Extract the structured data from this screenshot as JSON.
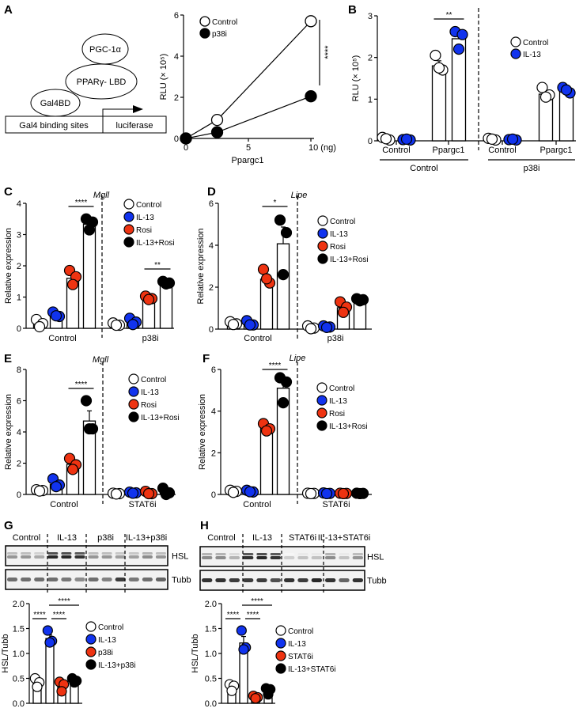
{
  "panels": [
    "A",
    "B",
    "C",
    "D",
    "E",
    "F",
    "G",
    "H"
  ],
  "diagram": {
    "boxes": [
      "Gal4 binding sites",
      "luciferase"
    ],
    "proteins": [
      "Gal4BD",
      "PPARγ- LBD",
      "PGC-1α"
    ]
  },
  "chart_data": [
    {
      "panel": "A",
      "type": "line",
      "xlabel": "Ppargc1",
      "ylabel": "RLU (× 10⁵)",
      "xlim": [
        0,
        10
      ],
      "ylim": [
        0,
        6
      ],
      "xtick_labels": [
        "0",
        "5",
        "10 (ng)"
      ],
      "xticks": [
        0,
        5,
        10
      ],
      "ytick_labels": [
        "0",
        "2",
        "4",
        "6"
      ],
      "yticks": [
        0,
        2,
        4,
        6
      ],
      "series": [
        {
          "name": "Control",
          "color": "#ffffff",
          "x": [
            0,
            2.5,
            10
          ],
          "y": [
            0,
            0.9,
            5.7
          ]
        },
        {
          "name": "p38i",
          "color": "#000000",
          "x": [
            0,
            2.5,
            10
          ],
          "y": [
            0,
            0.3,
            2.05
          ]
        }
      ],
      "significance": [
        {
          "label": "****"
        }
      ],
      "legend": "top-left"
    },
    {
      "panel": "B",
      "type": "bar",
      "ylabel": "RLU (× 10⁵)",
      "ylim": [
        0,
        3
      ],
      "ytick_labels": [
        "0",
        "1",
        "2",
        "3"
      ],
      "yticks": [
        0,
        1,
        2,
        3
      ],
      "subgroups": [
        "Control",
        "Ppargc1",
        "Control",
        "Ppargc1"
      ],
      "groups": [
        "Control",
        "p38i"
      ],
      "series": [
        {
          "name": "Control",
          "color": "#ffffff"
        },
        {
          "name": "IL-13",
          "color": "#1133ee"
        }
      ],
      "bars": [
        {
          "series": 0,
          "mean": 0.05,
          "sem": 0.02,
          "points": [
            0.08,
            0.02,
            0.05
          ]
        },
        {
          "series": 1,
          "mean": 0.03,
          "sem": 0.01,
          "points": [
            0.03,
            0.02,
            0.04
          ]
        },
        {
          "series": 0,
          "mean": 1.8,
          "sem": 0.12,
          "points": [
            2.05,
            1.7,
            1.75
          ]
        },
        {
          "series": 1,
          "mean": 2.45,
          "sem": 0.1,
          "points": [
            2.62,
            2.55,
            2.2
          ]
        },
        {
          "series": 0,
          "mean": 0.04,
          "sem": 0.02,
          "points": [
            0.06,
            0.02,
            0.04
          ]
        },
        {
          "series": 1,
          "mean": 0.03,
          "sem": 0.01,
          "points": [
            0.03,
            0.02,
            0.04
          ]
        },
        {
          "series": 0,
          "mean": 1.12,
          "sem": 0.08,
          "points": [
            1.28,
            1.1,
            1.05
          ]
        },
        {
          "series": 1,
          "mean": 1.22,
          "sem": 0.05,
          "points": [
            1.28,
            1.15,
            1.22
          ]
        }
      ],
      "significance": [
        {
          "from": 2,
          "to": 3,
          "label": "**"
        }
      ],
      "legend": "right"
    },
    {
      "panel": "C",
      "type": "bar",
      "ylabel": "Relative expression",
      "gene": "Mgll",
      "ylim": [
        0,
        4
      ],
      "ytick_labels": [
        "0",
        "1",
        "2",
        "3",
        "4"
      ],
      "yticks": [
        0,
        1,
        2,
        3,
        4
      ],
      "groups": [
        "Control",
        "p38i"
      ],
      "series": [
        {
          "name": "Control",
          "color": "#ffffff"
        },
        {
          "name": "IL-13",
          "color": "#1133ee"
        },
        {
          "name": "Rosi",
          "color": "#ee3311"
        },
        {
          "name": "IL-13+Rosi",
          "color": "#000000"
        }
      ],
      "bars": [
        {
          "series": 0,
          "mean": 0.13,
          "sem": 0.07,
          "points": [
            0.28,
            0.15,
            0.05
          ]
        },
        {
          "series": 1,
          "mean": 0.43,
          "sem": 0.04,
          "points": [
            0.52,
            0.38,
            0.4
          ]
        },
        {
          "series": 2,
          "mean": 1.6,
          "sem": 0.13,
          "points": [
            1.85,
            1.65,
            1.4
          ]
        },
        {
          "series": 3,
          "mean": 3.33,
          "sem": 0.1,
          "points": [
            3.5,
            3.4,
            3.15
          ]
        },
        {
          "series": 0,
          "mean": 0.12,
          "sem": 0.03,
          "points": [
            0.17,
            0.1,
            0.1
          ]
        },
        {
          "series": 1,
          "mean": 0.2,
          "sem": 0.06,
          "points": [
            0.32,
            0.2,
            0.12
          ]
        },
        {
          "series": 2,
          "mean": 0.97,
          "sem": 0.03,
          "points": [
            1.03,
            0.95,
            0.92
          ]
        },
        {
          "series": 3,
          "mean": 1.45,
          "sem": 0.02,
          "points": [
            1.5,
            1.45,
            1.42
          ]
        }
      ],
      "significance": [
        {
          "from": 2,
          "to": 3,
          "label": "****"
        },
        {
          "from": 6,
          "to": 7,
          "label": "**"
        }
      ],
      "legend": "top-right"
    },
    {
      "panel": "D",
      "type": "bar",
      "ylabel": "Relative expression",
      "gene": "Lipe",
      "ylim": [
        0,
        6
      ],
      "ytick_labels": [
        "0",
        "2",
        "4",
        "6"
      ],
      "yticks": [
        0,
        2,
        4,
        6
      ],
      "groups": [
        "Control",
        "p38i"
      ],
      "series": [
        {
          "name": "Control",
          "color": "#ffffff"
        },
        {
          "name": "IL-13",
          "color": "#1133ee"
        },
        {
          "name": "Rosi",
          "color": "#ee3311"
        },
        {
          "name": "IL-13+Rosi",
          "color": "#000000"
        }
      ],
      "bars": [
        {
          "series": 0,
          "mean": 0.27,
          "sem": 0.04,
          "points": [
            0.35,
            0.25,
            0.22
          ]
        },
        {
          "series": 1,
          "mean": 0.25,
          "sem": 0.06,
          "points": [
            0.4,
            0.2,
            0.2
          ]
        },
        {
          "series": 2,
          "mean": 2.38,
          "sem": 0.2,
          "points": [
            2.85,
            2.2,
            2.4
          ]
        },
        {
          "series": 3,
          "mean": 4.07,
          "sem": 0.8,
          "points": [
            5.2,
            4.6,
            2.6
          ]
        },
        {
          "series": 0,
          "mean": 0.07,
          "sem": 0.04,
          "points": [
            0.15,
            0.05,
            0.02
          ]
        },
        {
          "series": 1,
          "mean": 0.1,
          "sem": 0.02,
          "points": [
            0.15,
            0.1,
            0.08
          ]
        },
        {
          "series": 2,
          "mean": 1.02,
          "sem": 0.15,
          "points": [
            1.3,
            1.05,
            0.8
          ]
        },
        {
          "series": 3,
          "mean": 1.4,
          "sem": 0.03,
          "points": [
            1.45,
            1.4,
            1.35
          ]
        }
      ],
      "significance": [
        {
          "from": 2,
          "to": 3,
          "label": "*"
        }
      ],
      "legend": "right"
    },
    {
      "panel": "E",
      "type": "bar",
      "ylabel": "Relative expression",
      "gene": "Mgll",
      "ylim": [
        0,
        8
      ],
      "ytick_labels": [
        "0",
        "2",
        "4",
        "6",
        "8"
      ],
      "yticks": [
        0,
        2,
        4,
        6,
        8
      ],
      "groups": [
        "Control",
        "STAT6i"
      ],
      "series": [
        {
          "name": "Control",
          "color": "#ffffff"
        },
        {
          "name": "IL-13",
          "color": "#1133ee"
        },
        {
          "name": "Rosi",
          "color": "#ee3311"
        },
        {
          "name": "IL-13+Rosi",
          "color": "#000000"
        }
      ],
      "bars": [
        {
          "series": 0,
          "mean": 0.25,
          "sem": 0.03,
          "points": [
            0.3,
            0.25,
            0.22
          ]
        },
        {
          "series": 1,
          "mean": 0.63,
          "sem": 0.15,
          "points": [
            1.0,
            0.6,
            0.5
          ]
        },
        {
          "series": 2,
          "mean": 1.93,
          "sem": 0.2,
          "points": [
            2.3,
            1.9,
            1.6
          ]
        },
        {
          "series": 3,
          "mean": 4.7,
          "sem": 0.65,
          "points": [
            6.0,
            4.2,
            4.2
          ]
        },
        {
          "series": 0,
          "mean": 0.05,
          "sem": 0.02,
          "points": [
            0.08,
            0.05,
            0.03
          ]
        },
        {
          "series": 1,
          "mean": 0.12,
          "sem": 0.03,
          "points": [
            0.15,
            0.1,
            0.08
          ]
        },
        {
          "series": 2,
          "mean": 0.1,
          "sem": 0.05,
          "points": [
            0.2,
            0.05,
            0.05
          ]
        },
        {
          "series": 3,
          "mean": 0.12,
          "sem": 0.1,
          "points": [
            0.4,
            0.1,
            0.0
          ]
        }
      ],
      "significance": [
        {
          "from": 2,
          "to": 3,
          "label": "****"
        }
      ],
      "legend": "top-right"
    },
    {
      "panel": "F",
      "type": "bar",
      "ylabel": "Relative expression",
      "gene": "Lipe",
      "ylim": [
        0,
        6
      ],
      "ytick_labels": [
        "0",
        "2",
        "4",
        "6"
      ],
      "yticks": [
        0,
        2,
        4,
        6
      ],
      "groups": [
        "Control",
        "STAT6i"
      ],
      "series": [
        {
          "name": "Control",
          "color": "#ffffff"
        },
        {
          "name": "IL-13",
          "color": "#1133ee"
        },
        {
          "name": "Rosi",
          "color": "#ee3311"
        },
        {
          "name": "IL-13+Rosi",
          "color": "#000000"
        }
      ],
      "bars": [
        {
          "series": 0,
          "mean": 0.15,
          "sem": 0.03,
          "points": [
            0.2,
            0.15,
            0.1
          ]
        },
        {
          "series": 1,
          "mean": 0.15,
          "sem": 0.02,
          "points": [
            0.2,
            0.12,
            0.13
          ]
        },
        {
          "series": 2,
          "mean": 3.2,
          "sem": 0.1,
          "points": [
            3.4,
            3.15,
            3.05
          ]
        },
        {
          "series": 3,
          "mean": 5.1,
          "sem": 0.35,
          "points": [
            5.6,
            5.4,
            4.4
          ]
        },
        {
          "series": 0,
          "mean": 0.05,
          "sem": 0.01,
          "points": [
            0.06,
            0.05,
            0.04
          ]
        },
        {
          "series": 1,
          "mean": 0.05,
          "sem": 0.01,
          "points": [
            0.07,
            0.05,
            0.04
          ]
        },
        {
          "series": 2,
          "mean": 0.05,
          "sem": 0.01,
          "points": [
            0.06,
            0.05,
            0.04
          ]
        },
        {
          "series": 3,
          "mean": 0.05,
          "sem": 0.01,
          "points": [
            0.06,
            0.05,
            0.04
          ]
        }
      ],
      "significance": [
        {
          "from": 2,
          "to": 3,
          "label": "****"
        }
      ],
      "legend": "right"
    },
    {
      "panel": "G",
      "type": "bar",
      "ylabel": "HSL/Tubb",
      "ylim": [
        0,
        2
      ],
      "ytick_labels": [
        "0.0",
        "0.5",
        "1.0",
        "1.5",
        "2.0"
      ],
      "yticks": [
        0,
        0.5,
        1,
        1.5,
        2
      ],
      "series": [
        {
          "name": "Control",
          "color": "#ffffff"
        },
        {
          "name": "IL-13",
          "color": "#1133ee"
        },
        {
          "name": "p38i",
          "color": "#ee3311"
        },
        {
          "name": "IL-13+p38i",
          "color": "#000000"
        }
      ],
      "bars": [
        {
          "series": 0,
          "mean": 0.42,
          "sem": 0.05,
          "points": [
            0.5,
            0.42,
            0.33
          ]
        },
        {
          "series": 1,
          "mean": 1.3,
          "sem": 0.07,
          "points": [
            1.46,
            1.25,
            1.22
          ]
        },
        {
          "series": 2,
          "mean": 0.35,
          "sem": 0.05,
          "points": [
            0.43,
            0.38,
            0.24
          ]
        },
        {
          "series": 3,
          "mean": 0.45,
          "sem": 0.02,
          "points": [
            0.5,
            0.45,
            0.42
          ]
        }
      ],
      "significance": [
        {
          "from": 0,
          "to": 1,
          "label": "****"
        },
        {
          "from": 1,
          "to": 2,
          "label": "****"
        },
        {
          "from": 1,
          "to": 3,
          "label": "****"
        }
      ],
      "blot": {
        "lanes": [
          "Control",
          "IL-13",
          "p38i",
          "IL-13+p38i"
        ],
        "rows": [
          {
            "label": "HSL",
            "intensity": [
              0.4,
              0.4,
              0.3,
              0.95,
              0.95,
              0.9,
              0.4,
              0.4,
              0.35,
              0.35,
              0.45,
              0.4
            ]
          },
          {
            "label": "Tubb",
            "intensity": [
              0.6,
              0.6,
              0.6,
              0.6,
              0.55,
              0.45,
              0.6,
              0.5,
              0.85,
              0.55,
              0.6,
              0.65
            ]
          }
        ]
      },
      "legend": "right"
    },
    {
      "panel": "H",
      "type": "bar",
      "ylabel": "HSL/Tubb",
      "ylim": [
        0,
        2
      ],
      "ytick_labels": [
        "0.0",
        "0.5",
        "1.0",
        "1.5",
        "2.0"
      ],
      "yticks": [
        0,
        0.5,
        1,
        1.5,
        2
      ],
      "series": [
        {
          "name": "Control",
          "color": "#ffffff"
        },
        {
          "name": "IL-13",
          "color": "#1133ee"
        },
        {
          "name": "STAT6i",
          "color": "#ee3311"
        },
        {
          "name": "IL-13+STAT6i",
          "color": "#000000"
        }
      ],
      "bars": [
        {
          "series": 0,
          "mean": 0.35,
          "sem": 0.04,
          "points": [
            0.38,
            0.35,
            0.25
          ]
        },
        {
          "series": 1,
          "mean": 1.21,
          "sem": 0.13,
          "points": [
            1.46,
            1.12,
            1.08
          ]
        },
        {
          "series": 2,
          "mean": 0.12,
          "sem": 0.02,
          "points": [
            0.15,
            0.12,
            0.1
          ]
        },
        {
          "series": 3,
          "mean": 0.22,
          "sem": 0.04,
          "points": [
            0.3,
            0.28,
            0.18
          ]
        }
      ],
      "significance": [
        {
          "from": 0,
          "to": 1,
          "label": "****"
        },
        {
          "from": 1,
          "to": 2,
          "label": "****"
        },
        {
          "from": 1,
          "to": 3,
          "label": "****"
        }
      ],
      "blot": {
        "lanes": [
          "Control",
          "IL-13",
          "STAT6i",
          "IL-13+STAT6i"
        ],
        "rows": [
          {
            "label": "HSL",
            "intensity": [
              0.45,
              0.45,
              0.25,
              0.9,
              0.95,
              0.9,
              0.12,
              0.18,
              0.18,
              0.45,
              0.18,
              0.4
            ]
          },
          {
            "label": "Tubb",
            "intensity": [
              0.9,
              0.9,
              0.85,
              0.85,
              0.85,
              0.75,
              0.9,
              0.85,
              0.95,
              0.9,
              0.65,
              0.9
            ]
          }
        ]
      },
      "legend": "right"
    }
  ]
}
